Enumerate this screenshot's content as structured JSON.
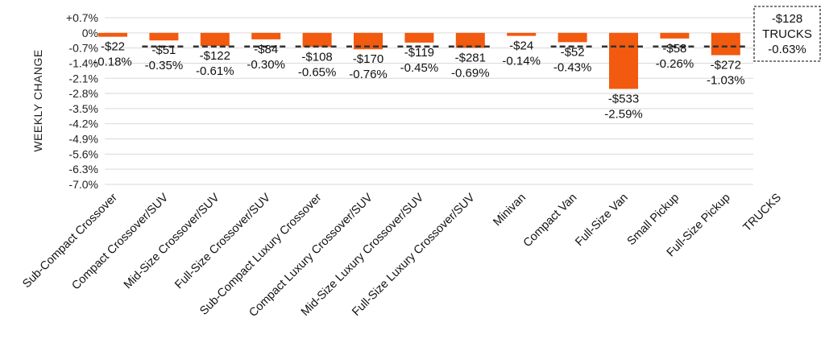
{
  "chart_data": {
    "type": "bar",
    "title": "",
    "xlabel": "",
    "ylabel": "WEEKLY CHANGE",
    "ylim": [
      -7.0,
      0.7
    ],
    "y_ticks": [
      "+0.7%",
      "0%",
      "-0.7%",
      "-1.4%",
      "-2.1%",
      "-2.8%",
      "-3.5%",
      "-4.2%",
      "-4.9%",
      "-5.6%",
      "-6.3%",
      "-7.0%"
    ],
    "y_tick_values": [
      0.7,
      0,
      -0.7,
      -1.4,
      -2.1,
      -2.8,
      -3.5,
      -4.2,
      -4.9,
      -5.6,
      -6.3,
      -7.0
    ],
    "grid": true,
    "categories": [
      "Sub-Compact Crossover",
      "Compact Crossover/SUV",
      "Mid-Size Crossover/SUV",
      "Full-Size Crossover/SUV",
      "Sub-Compact Luxury Crossover",
      "Compact Luxury Crossover/SUV",
      "Mid-Size Luxury Crossover/SUV",
      "Full-Size Luxury Crossover/SUV",
      "Minivan",
      "Compact Van",
      "Full-Size Van",
      "Small Pickup",
      "Full-Size Pickup",
      "TRUCKS"
    ],
    "values": [
      -0.18,
      -0.35,
      -0.61,
      -0.3,
      -0.65,
      -0.76,
      -0.45,
      -0.69,
      -0.14,
      -0.43,
      -2.59,
      -0.26,
      -1.03,
      null
    ],
    "dollar_labels": [
      "-$22",
      "-$51",
      "-$122",
      "-$84",
      "-$108",
      "-$170",
      "-$119",
      "-$281",
      "-$24",
      "-$52",
      "-$533",
      "-$58",
      "-$272",
      "-$128"
    ],
    "percent_labels": [
      "-0.18%",
      "-0.35%",
      "-0.61%",
      "-0.30%",
      "-0.65%",
      "-0.76%",
      "-0.45%",
      "-0.69%",
      "-0.14%",
      "-0.43%",
      "-2.59%",
      "-0.26%",
      "-1.03%",
      "-0.63%"
    ],
    "reference_line": -0.63,
    "summary_box": {
      "dollar": "-$128",
      "label": "TRUCKS",
      "percent": "-0.63%"
    },
    "bar_color": "#f25a0f",
    "reference_color": "#333333"
  }
}
